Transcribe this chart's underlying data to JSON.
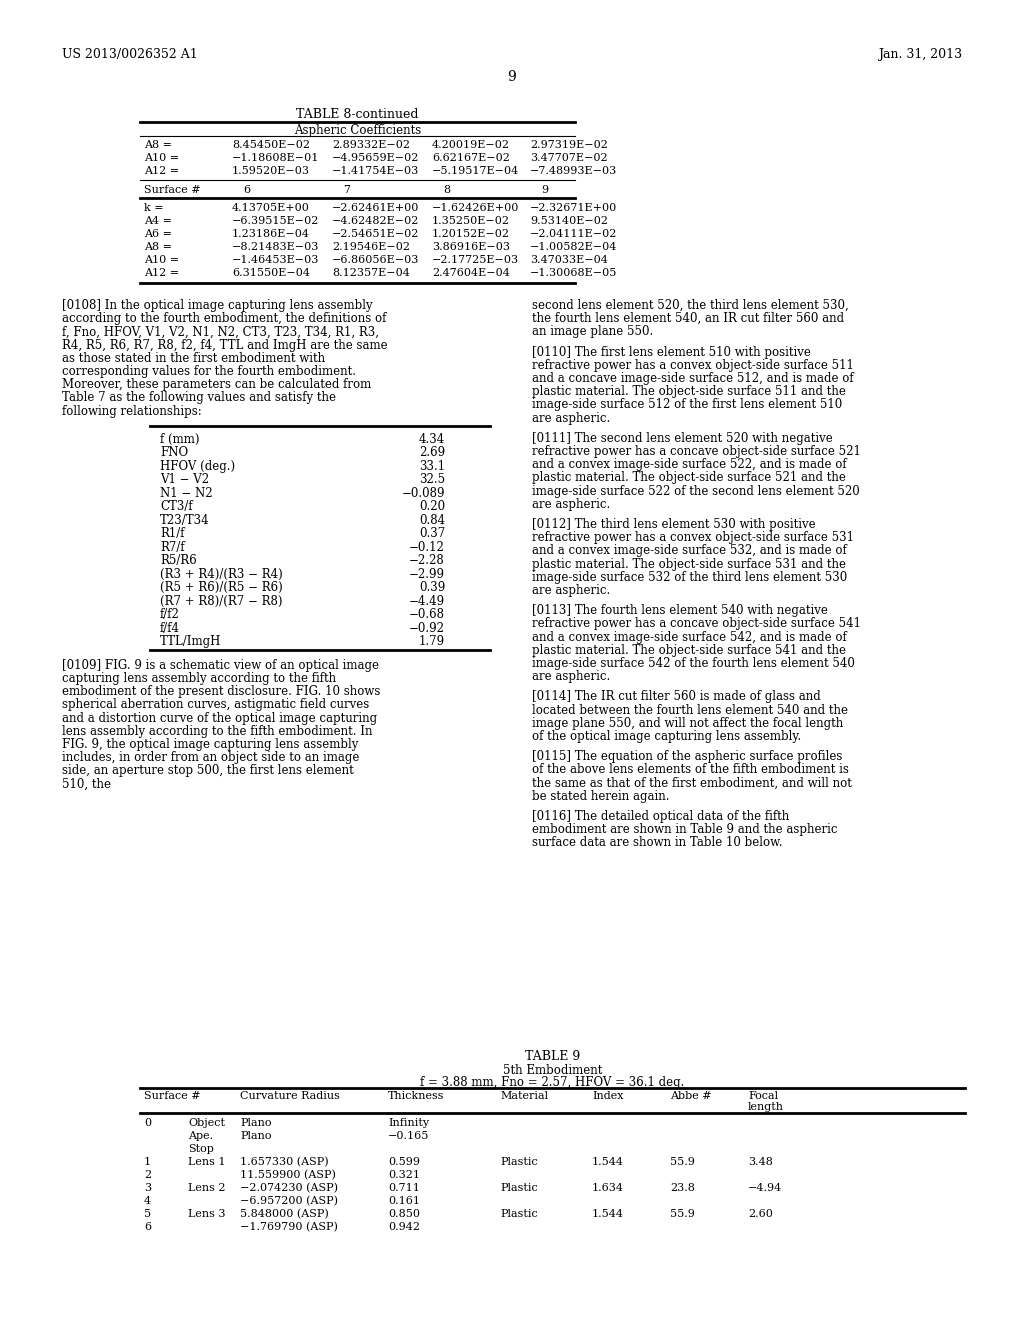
{
  "header_left": "US 2013/0026352 A1",
  "header_right": "Jan. 31, 2013",
  "page_number": "9",
  "table8_title": "TABLE 8-continued",
  "table8_subtitle": "Aspheric Coefficients",
  "table8_top_rows": [
    [
      "A8 =",
      "8.45450E−02",
      "2.89332E−02",
      "4.20019E−02",
      "2.97319E−02"
    ],
    [
      "A10 =",
      "−1.18608E−01",
      "−4.95659E−02",
      "6.62167E−02",
      "3.47707E−02"
    ],
    [
      "A12 =",
      "1.59520E−03",
      "−1.41754E−03",
      "−5.19517E−04",
      "−7.48993E−03"
    ]
  ],
  "table8_surface_row": [
    "Surface #",
    "6",
    "7",
    "8",
    "9"
  ],
  "table8_bottom_rows": [
    [
      "k =",
      "4.13705E+00",
      "−2.62461E+00",
      "−1.62426E+00",
      "−2.32671E+00"
    ],
    [
      "A4 =",
      "−6.39515E−02",
      "−4.62482E−02",
      "1.35250E−02",
      "9.53140E−02"
    ],
    [
      "A6 =",
      "1.23186E−04",
      "−2.54651E−02",
      "1.20152E−02",
      "−2.04111E−02"
    ],
    [
      "A8 =",
      "−8.21483E−03",
      "2.19546E−02",
      "3.86916E−03",
      "−1.00582E−04"
    ],
    [
      "A10 =",
      "−1.46453E−03",
      "−6.86056E−03",
      "−2.17725E−03",
      "3.47033E−04"
    ],
    [
      "A12 =",
      "6.31550E−04",
      "8.12357E−04",
      "2.47604E−04",
      "−1.30068E−05"
    ]
  ],
  "para0108": "[0108]   In the optical image capturing lens assembly according to the fourth embodiment, the definitions of f, Fno, HFOV, V1, V2, N1, N2, CT3, T23, T34, R1, R3, R4, R5, R6, R7, R8, f2, f4, TTL and ImgH are the same as those stated in the first embodiment with corresponding values for the fourth embodiment. Moreover, these parameters can be calculated from Table 7 as the following values and satisfy the following relationships:",
  "param_table": [
    [
      "f (mm)",
      "4.34"
    ],
    [
      "FNO",
      "2.69"
    ],
    [
      "HFOV (deg.)",
      "33.1"
    ],
    [
      "V1 − V2",
      "32.5"
    ],
    [
      "N1 − N2",
      "−0.089"
    ],
    [
      "CT3/f",
      "0.20"
    ],
    [
      "T23/T34",
      "0.84"
    ],
    [
      "R1/f",
      "0.37"
    ],
    [
      "R7/f",
      "−0.12"
    ],
    [
      "R5/R6",
      "−2.28"
    ],
    [
      "(R3 + R4)/(R3 − R4)",
      "−2.99"
    ],
    [
      "(R5 + R6)/(R5 − R6)",
      "0.39"
    ],
    [
      "(R7 + R8)/(R7 − R8)",
      "−4.49"
    ],
    [
      "f/f2",
      "−0.68"
    ],
    [
      "f/f4",
      "−0.92"
    ],
    [
      "TTL/ImgH",
      "1.79"
    ]
  ],
  "para0109": "[0109]   FIG. 9 is a schematic view of an optical image capturing lens assembly according to the fifth embodiment of the present disclosure. FIG. 10 shows spherical aberration curves, astigmatic field curves and a distortion curve of the optical image capturing lens assembly according to the fifth embodiment. In FIG. 9, the optical image capturing lens assembly includes, in order from an object side to an image side, an aperture stop 500, the first lens element 510, the",
  "right_col_paras": [
    "second lens element 520, the third lens element 530, the fourth lens element 540, an IR cut filter 560 and an image plane 550.",
    "[0110]   The first lens element 510 with positive refractive power has a convex object-side surface 511 and a concave image-side surface 512, and is made of plastic material. The object-side surface 511 and the image-side surface 512 of the first lens element 510 are aspheric.",
    "[0111]   The second lens element 520 with negative refractive power has a concave object-side surface 521 and a convex image-side surface 522, and is made of plastic material. The object-side surface 521 and the image-side surface 522 of the second lens element 520 are aspheric.",
    "[0112]   The third lens element 530 with positive refractive power has a convex object-side surface 531 and a convex image-side surface 532, and is made of plastic material. The object-side surface 531 and the image-side surface 532 of the third lens element 530 are aspheric.",
    "[0113]   The fourth lens element 540 with negative refractive power has a concave object-side surface 541 and a convex image-side surface 542, and is made of plastic material. The object-side surface 541 and the image-side surface 542 of the fourth lens element 540 are aspheric.",
    "[0114]   The IR cut filter 560 is made of glass and located between the fourth lens element 540 and the image plane 550, and will not affect the focal length of the optical image capturing lens assembly.",
    "[0115]   The equation of the aspheric surface profiles of the above lens elements of the fifth embodiment is the same as that of the first embodiment, and will not be stated herein again.",
    "[0116]   The detailed optical data of the fifth embodiment are shown in Table 9 and the aspheric surface data are shown in Table 10 below."
  ],
  "table9_title": "TABLE 9",
  "table9_sub1": "5th Embodiment",
  "table9_sub2": "f = 3.88 mm, Fno = 2.57, HFOV = 36.1 deg.",
  "table9_col_headers": [
    "Surface #",
    "",
    "Curvature Radius",
    "Thickness",
    "Material",
    "Index",
    "Abbe #",
    "Focal\nlength"
  ],
  "table9_rows": [
    [
      "0",
      "Object",
      "Plano",
      "Infinity",
      "",
      "",
      "",
      ""
    ],
    [
      "",
      "Ape.",
      "Plano",
      "−0.165",
      "",
      "",
      "",
      ""
    ],
    [
      "",
      "Stop",
      "",
      "",
      "",
      "",
      "",
      ""
    ],
    [
      "1",
      "Lens 1",
      "1.657330 (ASP)",
      "0.599",
      "Plastic",
      "1.544",
      "55.9",
      "3.48"
    ],
    [
      "2",
      "",
      "11.559900 (ASP)",
      "0.321",
      "",
      "",
      "",
      ""
    ],
    [
      "3",
      "Lens 2",
      "−2.074230 (ASP)",
      "0.711",
      "Plastic",
      "1.634",
      "23.8",
      "−4.94"
    ],
    [
      "4",
      "",
      "−6.957200 (ASP)",
      "0.161",
      "",
      "",
      "",
      ""
    ],
    [
      "5",
      "Lens 3",
      "5.848000 (ASP)",
      "0.850",
      "Plastic",
      "1.544",
      "55.9",
      "2.60"
    ],
    [
      "6",
      "",
      "−1.769790 (ASP)",
      "0.942",
      "",
      "",
      "",
      ""
    ]
  ]
}
